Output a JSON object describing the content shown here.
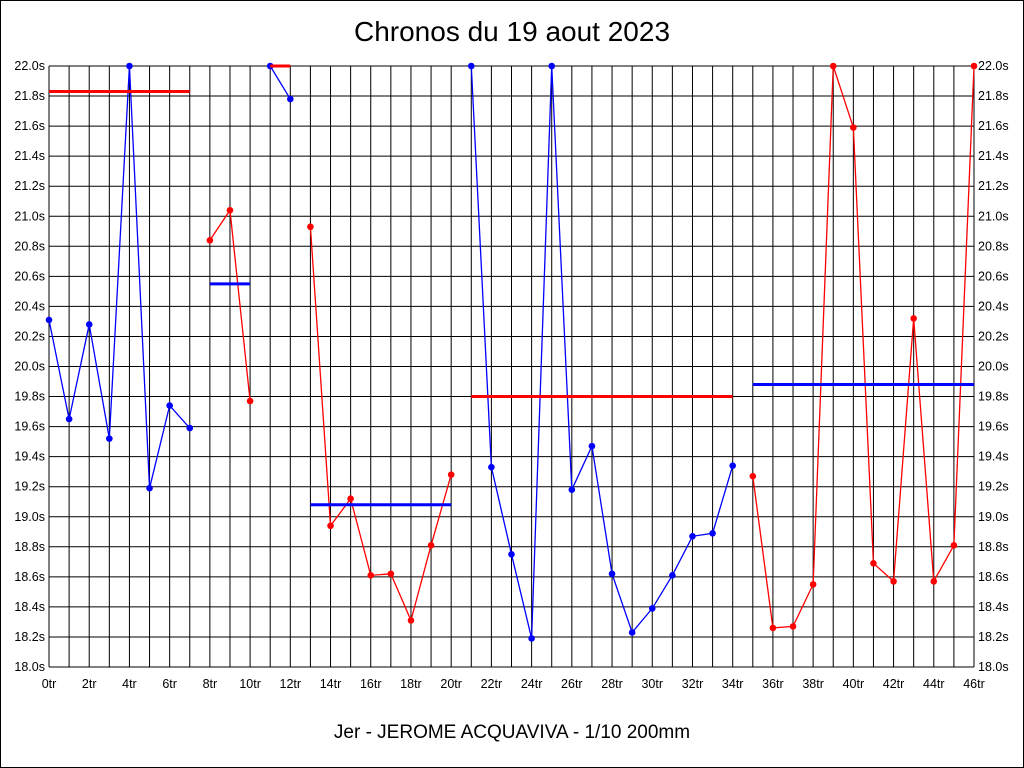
{
  "chart_data": {
    "type": "line",
    "title": "Chronos du 19 aout 2023",
    "footer": "Jer - JEROME ACQUAVIVA - 1/10 200mm",
    "xlabel": "",
    "ylabel": "",
    "xlim": [
      0,
      46
    ],
    "ylim": [
      18.0,
      22.0
    ],
    "grid": true,
    "x_tick_labels": [
      "0tr",
      "2tr",
      "4tr",
      "6tr",
      "8tr",
      "10tr",
      "12tr",
      "14tr",
      "16tr",
      "18tr",
      "20tr",
      "22tr",
      "24tr",
      "26tr",
      "28tr",
      "30tr",
      "32tr",
      "34tr",
      "36tr",
      "38tr",
      "40tr",
      "42tr",
      "44tr",
      "46tr"
    ],
    "y_tick_labels": [
      "18.0s",
      "18.2s",
      "18.4s",
      "18.6s",
      "18.8s",
      "19.0s",
      "19.2s",
      "19.4s",
      "19.6s",
      "19.8s",
      "20.0s",
      "20.2s",
      "20.4s",
      "20.6s",
      "20.8s",
      "21.0s",
      "21.2s",
      "21.4s",
      "21.6s",
      "21.8s",
      "22.0s"
    ],
    "colors": {
      "blue": "#0000ff",
      "red": "#ff0000",
      "grid": "#000000"
    },
    "segments": [
      {
        "color": "#0000ff",
        "avg_color": "#ff0000",
        "avg": 21.83,
        "x": [
          0,
          1,
          2,
          3,
          4,
          5,
          6,
          7
        ],
        "y": [
          20.31,
          19.65,
          20.28,
          19.52,
          22.0,
          19.19,
          19.74,
          19.59
        ]
      },
      {
        "color": "#ff0000",
        "avg_color": "#0000ff",
        "avg": 20.55,
        "x": [
          8,
          9,
          10
        ],
        "y": [
          20.84,
          21.04,
          19.77
        ]
      },
      {
        "color": "#0000ff",
        "avg_color": "#ff0000",
        "avg": 22.0,
        "x": [
          11,
          12
        ],
        "y": [
          22.0,
          21.78
        ]
      },
      {
        "color": "#ff0000",
        "avg_color": "#0000ff",
        "avg": 19.08,
        "x": [
          13,
          14,
          15,
          16,
          17,
          18,
          19,
          20
        ],
        "y": [
          20.93,
          18.94,
          19.12,
          18.61,
          18.62,
          18.31,
          18.81,
          19.28
        ]
      },
      {
        "color": "#0000ff",
        "avg_color": "#ff0000",
        "avg": 19.8,
        "x": [
          21,
          22,
          23,
          24,
          25,
          26,
          27,
          28,
          29,
          30,
          31,
          32,
          33,
          34
        ],
        "y": [
          22.0,
          19.33,
          18.75,
          18.19,
          22.0,
          19.18,
          19.47,
          18.62,
          18.23,
          18.39,
          18.61,
          18.87,
          18.89,
          19.34
        ]
      },
      {
        "color": "#ff0000",
        "avg_color": "#0000ff",
        "avg": 19.88,
        "x": [
          35,
          36,
          37,
          38,
          39,
          40,
          41,
          42,
          43,
          44,
          45,
          46
        ],
        "y": [
          19.27,
          18.26,
          18.27,
          18.55,
          22.0,
          21.59,
          18.69,
          18.57,
          20.32,
          18.57,
          18.81,
          22.0
        ]
      }
    ]
  }
}
